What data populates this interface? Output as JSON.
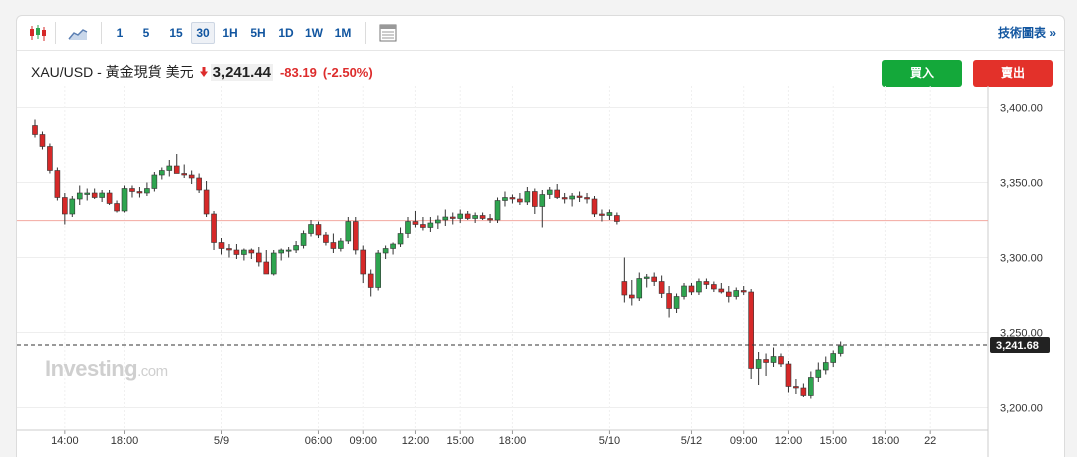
{
  "toolbar": {
    "intervals": [
      "1",
      "5",
      "15",
      "30",
      "1H",
      "5H",
      "1D",
      "1W",
      "1M"
    ],
    "active_interval": "30",
    "tech_link": "技術圖表 »"
  },
  "quote": {
    "name": "XAU/USD - 黃金現貨 美元",
    "price": "3,241.44",
    "change": "-83.19",
    "change_pct": "(-2.50%)",
    "down_color": "#dd2c2c"
  },
  "actions": {
    "buy": "買入",
    "sell": "賣出"
  },
  "watermark": {
    "brand": "Investing",
    "suffix": ".com"
  },
  "colors": {
    "up": "#2ea44f",
    "down": "#d62828",
    "ref_line": "#f3a8a0",
    "last_line": "#333333",
    "last_label_bg": "#222222"
  },
  "chart_data": {
    "type": "candlestick",
    "ylim": [
      3185,
      3413
    ],
    "y_ticks": [
      "3,400.00",
      "3,350.00",
      "3,300.00",
      "3,250.00",
      "3,200.00"
    ],
    "y_tick_values": [
      3400,
      3350,
      3300,
      3250,
      3200
    ],
    "x_ticks": [
      "14:00",
      "18:00",
      "5/9",
      "06:00",
      "09:00",
      "12:00",
      "15:00",
      "18:00",
      "5/10",
      "5/12",
      "09:00",
      "12:00",
      "15:00",
      "18:00",
      "22"
    ],
    "x_tick_index": [
      4,
      12,
      25,
      38,
      44,
      51,
      57,
      64,
      77,
      88,
      95,
      101,
      107,
      114,
      120
    ],
    "reference_value": 3324.6,
    "last_value": 3241.68,
    "last_label": "3,241.68",
    "candles": [
      [
        3388,
        3392,
        3380,
        3382
      ],
      [
        3382,
        3384,
        3372,
        3374
      ],
      [
        3374,
        3376,
        3356,
        3358
      ],
      [
        3358,
        3360,
        3338,
        3340
      ],
      [
        3340,
        3343,
        3322,
        3329
      ],
      [
        3329,
        3341,
        3327,
        3339
      ],
      [
        3339,
        3348,
        3335,
        3343
      ],
      [
        3342,
        3346,
        3338,
        3343
      ],
      [
        3343,
        3346,
        3339,
        3340
      ],
      [
        3340,
        3345,
        3337,
        3343
      ],
      [
        3343,
        3345,
        3335,
        3336
      ],
      [
        3336,
        3338,
        3330,
        3331
      ],
      [
        3331,
        3348,
        3330,
        3346
      ],
      [
        3346,
        3348,
        3340,
        3344
      ],
      [
        3344,
        3347,
        3340,
        3343
      ],
      [
        3343,
        3350,
        3341,
        3346
      ],
      [
        3346,
        3357,
        3344,
        3355
      ],
      [
        3355,
        3360,
        3352,
        3358
      ],
      [
        3358,
        3365,
        3354,
        3361
      ],
      [
        3361,
        3369,
        3356,
        3356
      ],
      [
        3356,
        3362,
        3353,
        3355
      ],
      [
        3355,
        3358,
        3349,
        3353
      ],
      [
        3353,
        3356,
        3343,
        3345
      ],
      [
        3345,
        3351,
        3327,
        3329
      ],
      [
        3329,
        3331,
        3305,
        3310
      ],
      [
        3310,
        3313,
        3302,
        3306
      ],
      [
        3306,
        3309,
        3300,
        3305
      ],
      [
        3305,
        3309,
        3299,
        3302
      ],
      [
        3302,
        3306,
        3298,
        3305
      ],
      [
        3305,
        3306,
        3299,
        3303
      ],
      [
        3303,
        3307,
        3294,
        3297
      ],
      [
        3297,
        3305,
        3289,
        3289
      ],
      [
        3289,
        3305,
        3288,
        3303
      ],
      [
        3303,
        3306,
        3298,
        3305
      ],
      [
        3305,
        3307,
        3300,
        3305
      ],
      [
        3305,
        3311,
        3303,
        3308
      ],
      [
        3308,
        3318,
        3306,
        3316
      ],
      [
        3316,
        3325,
        3314,
        3322
      ],
      [
        3322,
        3324,
        3313,
        3315
      ],
      [
        3315,
        3317,
        3308,
        3310
      ],
      [
        3310,
        3316,
        3303,
        3306
      ],
      [
        3306,
        3313,
        3304,
        3311
      ],
      [
        3311,
        3327,
        3309,
        3324
      ],
      [
        3324,
        3327,
        3302,
        3305
      ],
      [
        3305,
        3308,
        3283,
        3289
      ],
      [
        3289,
        3292,
        3274,
        3280
      ],
      [
        3280,
        3305,
        3278,
        3303
      ],
      [
        3303,
        3308,
        3299,
        3306
      ],
      [
        3306,
        3310,
        3302,
        3309
      ],
      [
        3309,
        3320,
        3307,
        3316
      ],
      [
        3316,
        3327,
        3313,
        3324
      ],
      [
        3324,
        3331,
        3320,
        3322
      ],
      [
        3322,
        3327,
        3318,
        3320
      ],
      [
        3320,
        3327,
        3317,
        3323
      ],
      [
        3323,
        3328,
        3319,
        3325
      ],
      [
        3325,
        3332,
        3321,
        3327
      ],
      [
        3327,
        3330,
        3322,
        3326
      ],
      [
        3326,
        3332,
        3323,
        3329
      ],
      [
        3329,
        3331,
        3325,
        3326
      ],
      [
        3326,
        3330,
        3323,
        3328
      ],
      [
        3328,
        3330,
        3325,
        3326
      ],
      [
        3326,
        3329,
        3323,
        3325
      ],
      [
        3325,
        3340,
        3323,
        3338
      ],
      [
        3338,
        3344,
        3334,
        3340
      ],
      [
        3340,
        3342,
        3336,
        3339
      ],
      [
        3339,
        3343,
        3335,
        3337
      ],
      [
        3337,
        3347,
        3335,
        3344
      ],
      [
        3344,
        3346,
        3329,
        3334
      ],
      [
        3334,
        3345,
        3320,
        3342
      ],
      [
        3342,
        3347,
        3339,
        3345
      ],
      [
        3345,
        3349,
        3339,
        3340
      ],
      [
        3340,
        3343,
        3336,
        3339
      ],
      [
        3339,
        3343,
        3334,
        3341
      ],
      [
        3341,
        3344,
        3337,
        3340
      ],
      [
        3340,
        3343,
        3336,
        3339
      ],
      [
        3339,
        3341,
        3327,
        3329
      ],
      [
        3329,
        3332,
        3324,
        3328
      ],
      [
        3328,
        3332,
        3325,
        3330
      ],
      [
        3328,
        3330,
        3322,
        3324
      ],
      [
        3284,
        3300,
        3270,
        3275
      ],
      [
        3275,
        3285,
        3268,
        3273
      ],
      [
        3273,
        3290,
        3271,
        3286
      ],
      [
        3286,
        3289,
        3280,
        3287
      ],
      [
        3287,
        3290,
        3281,
        3284
      ],
      [
        3284,
        3288,
        3273,
        3276
      ],
      [
        3276,
        3281,
        3260,
        3266
      ],
      [
        3266,
        3276,
        3263,
        3274
      ],
      [
        3274,
        3283,
        3272,
        3281
      ],
      [
        3281,
        3283,
        3275,
        3277
      ],
      [
        3277,
        3286,
        3275,
        3284
      ],
      [
        3284,
        3286,
        3279,
        3282
      ],
      [
        3282,
        3284,
        3277,
        3279
      ],
      [
        3279,
        3283,
        3276,
        3277
      ],
      [
        3277,
        3281,
        3270,
        3274
      ],
      [
        3274,
        3280,
        3272,
        3278
      ],
      [
        3278,
        3281,
        3275,
        3277
      ],
      [
        3277,
        3279,
        3219,
        3226
      ],
      [
        3226,
        3237,
        3215,
        3232
      ],
      [
        3232,
        3236,
        3221,
        3230
      ],
      [
        3230,
        3240,
        3227,
        3234
      ],
      [
        3234,
        3236,
        3227,
        3229
      ],
      [
        3229,
        3231,
        3210,
        3214
      ],
      [
        3214,
        3219,
        3209,
        3213
      ],
      [
        3213,
        3216,
        3207,
        3208
      ],
      [
        3208,
        3224,
        3206,
        3220
      ],
      [
        3220,
        3230,
        3217,
        3225
      ],
      [
        3225,
        3234,
        3222,
        3230
      ],
      [
        3230,
        3238,
        3227,
        3236
      ],
      [
        3236,
        3244,
        3234,
        3241
      ]
    ]
  }
}
